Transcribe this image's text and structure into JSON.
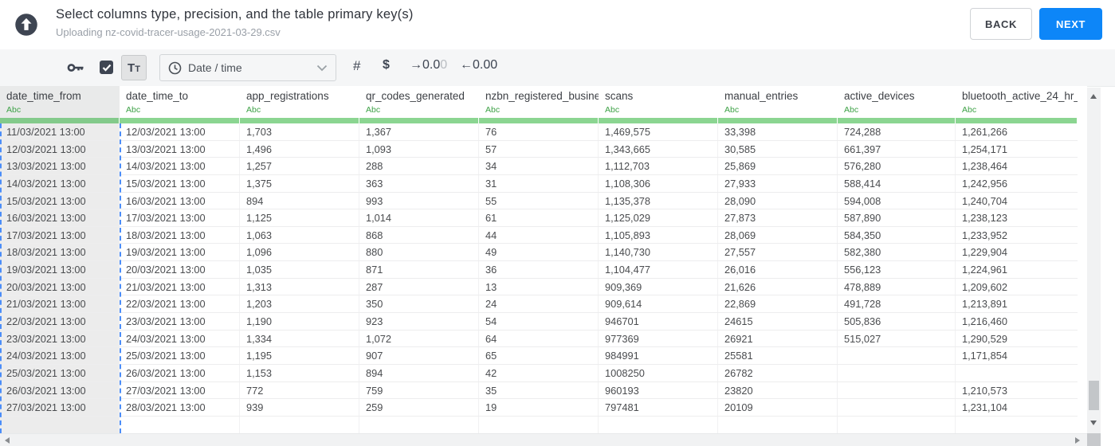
{
  "header": {
    "title": "Select columns type, precision, and the table primary key(s)",
    "subtitle": "Uploading nz-covid-tracer-usage-2021-03-29.csv",
    "back_label": "BACK",
    "next_label": "NEXT"
  },
  "toolbar": {
    "text_type_label": "Tt",
    "type_value": "Date / time",
    "number_label": "#",
    "currency_label": "$",
    "decimal_increase_main": "→0.0",
    "decimal_increase_faded": "0",
    "decimal_decrease": "←0.00"
  },
  "table": {
    "columns": [
      {
        "name": "date_time_from",
        "type_label": "Abc",
        "selected": true
      },
      {
        "name": "date_time_to",
        "type_label": "Abc",
        "selected": false
      },
      {
        "name": "app_registrations",
        "type_label": "Abc",
        "selected": false
      },
      {
        "name": "qr_codes_generated",
        "type_label": "Abc",
        "selected": false
      },
      {
        "name": "nzbn_registered_busine",
        "type_label": "Abc",
        "selected": false
      },
      {
        "name": "scans",
        "type_label": "Abc",
        "selected": false
      },
      {
        "name": "manual_entries",
        "type_label": "Abc",
        "selected": false
      },
      {
        "name": "active_devices",
        "type_label": "Abc",
        "selected": false
      },
      {
        "name": "bluetooth_active_24_hr_",
        "type_label": "Abc",
        "selected": false
      }
    ],
    "rows": [
      [
        "11/03/2021 13:00",
        "12/03/2021 13:00",
        "1,703",
        "1,367",
        "76",
        "1,469,575",
        "33,398",
        "724,288",
        "1,261,266"
      ],
      [
        "12/03/2021 13:00",
        "13/03/2021 13:00",
        "1,496",
        "1,093",
        "57",
        "1,343,665",
        "30,585",
        "661,397",
        "1,254,171"
      ],
      [
        "13/03/2021 13:00",
        "14/03/2021 13:00",
        "1,257",
        "288",
        "34",
        "1,112,703",
        "25,869",
        "576,280",
        "1,238,464"
      ],
      [
        "14/03/2021 13:00",
        "15/03/2021 13:00",
        "1,375",
        "363",
        "31",
        "1,108,306",
        "27,933",
        "588,414",
        "1,242,956"
      ],
      [
        "15/03/2021 13:00",
        "16/03/2021 13:00",
        "894",
        "993",
        "55",
        "1,135,378",
        "28,090",
        "594,008",
        "1,240,704"
      ],
      [
        "16/03/2021 13:00",
        "17/03/2021 13:00",
        "1,125",
        "1,014",
        "61",
        "1,125,029",
        "27,873",
        "587,890",
        "1,238,123"
      ],
      [
        "17/03/2021 13:00",
        "18/03/2021 13:00",
        "1,063",
        "868",
        "44",
        "1,105,893",
        "28,069",
        "584,350",
        "1,233,952"
      ],
      [
        "18/03/2021 13:00",
        "19/03/2021 13:00",
        "1,096",
        "880",
        "49",
        "1,140,730",
        "27,557",
        "582,380",
        "1,229,904"
      ],
      [
        "19/03/2021 13:00",
        "20/03/2021 13:00",
        "1,035",
        "871",
        "36",
        "1,104,477",
        "26,016",
        "556,123",
        "1,224,961"
      ],
      [
        "20/03/2021 13:00",
        "21/03/2021 13:00",
        "1,313",
        "287",
        "13",
        "909,369",
        "21,626",
        "478,889",
        "1,209,602"
      ],
      [
        "21/03/2021 13:00",
        "22/03/2021 13:00",
        "1,203",
        "350",
        "24",
        "909,614",
        "22,869",
        "491,728",
        "1,213,891"
      ],
      [
        "22/03/2021 13:00",
        "23/03/2021 13:00",
        "1,190",
        "923",
        "54",
        "946701",
        "24615",
        "505,836",
        "1,216,460"
      ],
      [
        "23/03/2021 13:00",
        "24/03/2021 13:00",
        "1,334",
        "1,072",
        "64",
        "977369",
        "26921",
        "515,027",
        "1,290,529"
      ],
      [
        "24/03/2021 13:00",
        "25/03/2021 13:00",
        "1,195",
        "907",
        "65",
        "984991",
        "25581",
        "",
        "1,171,854"
      ],
      [
        "25/03/2021 13:00",
        "26/03/2021 13:00",
        "1,153",
        "894",
        "42",
        "1008250",
        "26782",
        "",
        ""
      ],
      [
        "26/03/2021 13:00",
        "27/03/2021 13:00",
        "772",
        "759",
        "35",
        "960193",
        "23820",
        "",
        "1,210,573"
      ],
      [
        "27/03/2021 13:00",
        "28/03/2021 13:00",
        "939",
        "259",
        "19",
        "797481",
        "20109",
        "",
        "1,231,104"
      ]
    ]
  },
  "colors": {
    "accent_blue": "#0d86f8",
    "selection_blue": "#4b8df8",
    "type_green": "#3da146",
    "underline_green": "#8bd591",
    "icon_slate": "#3e4552"
  }
}
